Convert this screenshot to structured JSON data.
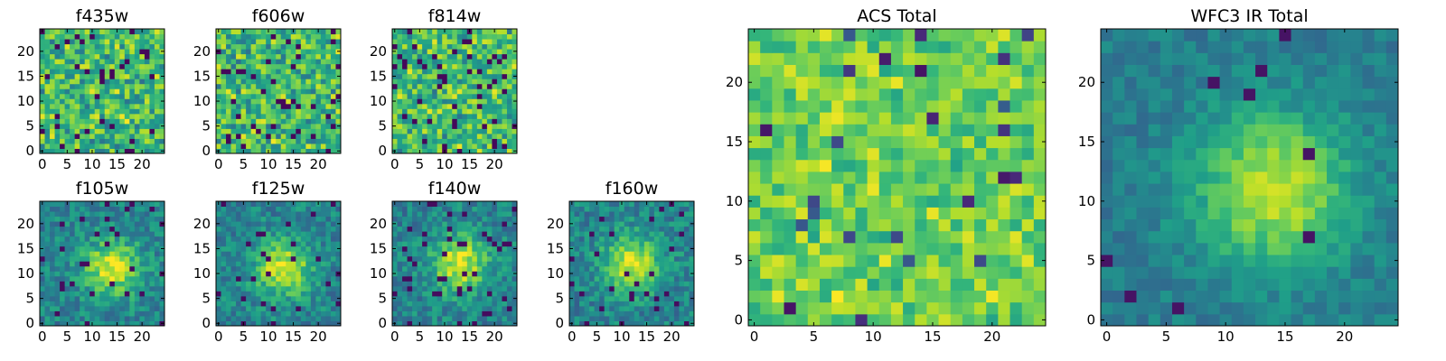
{
  "chart_data": [
    {
      "type": "heatmap",
      "title": "f435w",
      "grid_size": [
        25,
        25
      ],
      "colormap": "viridis",
      "pattern": "noise",
      "seed": 11,
      "xlim": [
        0,
        24
      ],
      "ylim": [
        0,
        24
      ],
      "xticks": [
        "0",
        "5",
        "10",
        "15",
        "20"
      ],
      "yticks": [
        "0",
        "5",
        "10",
        "15",
        "20"
      ]
    },
    {
      "type": "heatmap",
      "title": "f606w",
      "grid_size": [
        25,
        25
      ],
      "colormap": "viridis",
      "pattern": "noise",
      "seed": 23,
      "xlim": [
        0,
        24
      ],
      "ylim": [
        0,
        24
      ],
      "xticks": [
        "0",
        "5",
        "10",
        "15",
        "20"
      ],
      "yticks": [
        "0",
        "5",
        "10",
        "15",
        "20"
      ]
    },
    {
      "type": "heatmap",
      "title": "f814w",
      "grid_size": [
        25,
        25
      ],
      "colormap": "viridis",
      "pattern": "noise",
      "seed": 37,
      "xlim": [
        0,
        24
      ],
      "ylim": [
        0,
        24
      ],
      "xticks": [
        "0",
        "5",
        "10",
        "15",
        "20"
      ],
      "yticks": [
        "0",
        "5",
        "10",
        "15",
        "20"
      ]
    },
    {
      "type": "heatmap",
      "title": "f105w",
      "grid_size": [
        25,
        25
      ],
      "colormap": "viridis",
      "pattern": "blob",
      "center": [
        14,
        11
      ],
      "seed": 41,
      "xlim": [
        0,
        24
      ],
      "ylim": [
        0,
        24
      ],
      "xticks": [
        "0",
        "5",
        "10",
        "15",
        "20"
      ],
      "yticks": [
        "0",
        "5",
        "10",
        "15",
        "20"
      ]
    },
    {
      "type": "heatmap",
      "title": "f125w",
      "grid_size": [
        25,
        25
      ],
      "colormap": "viridis",
      "pattern": "blob",
      "center": [
        13,
        11
      ],
      "seed": 53,
      "xlim": [
        0,
        24
      ],
      "ylim": [
        0,
        24
      ],
      "xticks": [
        "0",
        "5",
        "10",
        "15",
        "20"
      ],
      "yticks": [
        "0",
        "5",
        "10",
        "15",
        "20"
      ]
    },
    {
      "type": "heatmap",
      "title": "f140w",
      "grid_size": [
        25,
        25
      ],
      "colormap": "viridis",
      "pattern": "blob",
      "center": [
        13,
        12
      ],
      "seed": 67,
      "xlim": [
        0,
        24
      ],
      "ylim": [
        0,
        24
      ],
      "xticks": [
        "0",
        "5",
        "10",
        "15",
        "20"
      ],
      "yticks": [
        "0",
        "5",
        "10",
        "15",
        "20"
      ]
    },
    {
      "type": "heatmap",
      "title": "f160w",
      "grid_size": [
        25,
        25
      ],
      "colormap": "viridis",
      "pattern": "blob",
      "center": [
        12,
        12
      ],
      "seed": 79,
      "xlim": [
        0,
        24
      ],
      "ylim": [
        0,
        24
      ],
      "xticks": [
        "0",
        "5",
        "10",
        "15",
        "20"
      ],
      "yticks": [
        "0",
        "5",
        "10",
        "15",
        "20"
      ]
    },
    {
      "type": "heatmap",
      "title": "ACS Total",
      "grid_size": [
        25,
        25
      ],
      "colormap": "viridis",
      "pattern": "noise-bright",
      "seed": 97,
      "xlim": [
        0,
        24
      ],
      "ylim": [
        0,
        24
      ],
      "xticks": [
        "0",
        "5",
        "10",
        "15",
        "20"
      ],
      "yticks": [
        "0",
        "5",
        "10",
        "15",
        "20"
      ]
    },
    {
      "type": "heatmap",
      "title": "WFC3 IR Total",
      "grid_size": [
        25,
        25
      ],
      "colormap": "viridis",
      "pattern": "blob-smooth",
      "center": [
        14,
        11
      ],
      "seed": 113,
      "xlim": [
        0,
        24
      ],
      "ylim": [
        0,
        24
      ],
      "xticks": [
        "0",
        "5",
        "10",
        "15",
        "20"
      ],
      "yticks": [
        "0",
        "5",
        "10",
        "15",
        "20"
      ]
    }
  ]
}
